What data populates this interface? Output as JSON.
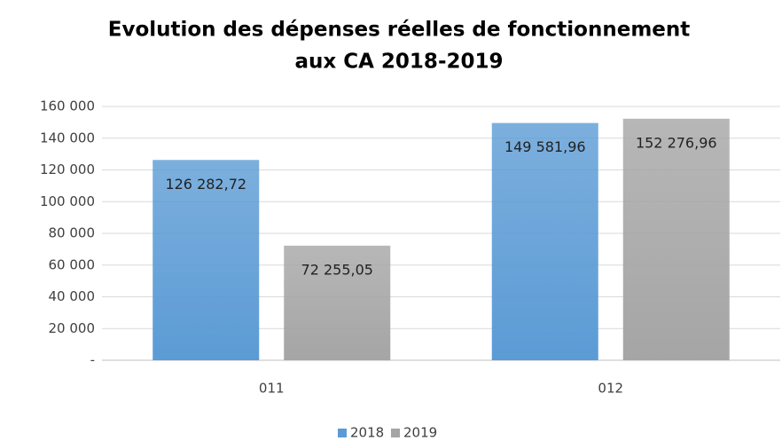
{
  "chart_data": {
    "type": "bar",
    "title": [
      "Evolution des dépenses réelles de fonctionnement",
      "aux CA 2018-2019"
    ],
    "categories": [
      "011",
      "012"
    ],
    "series": [
      {
        "name": "2018",
        "color": "#5b9bd5",
        "values": [
          126282.72,
          149581.96
        ],
        "value_labels": [
          "126 282,72",
          "149 581,96"
        ]
      },
      {
        "name": "2019",
        "color": "#a5a5a5",
        "values": [
          72255.05,
          152276.96
        ],
        "value_labels": [
          "72 255,05",
          "152 276,96"
        ]
      }
    ],
    "ylim": [
      0,
      160000
    ],
    "yticks": [
      {
        "value": 0,
        "label": "-"
      },
      {
        "value": 20000,
        "label": "20 000"
      },
      {
        "value": 40000,
        "label": "40 000"
      },
      {
        "value": 60000,
        "label": "60 000"
      },
      {
        "value": 80000,
        "label": "80 000"
      },
      {
        "value": 100000,
        "label": "100 000"
      },
      {
        "value": 120000,
        "label": "120 000"
      },
      {
        "value": 140000,
        "label": "140 000"
      },
      {
        "value": 160000,
        "label": "160 000"
      }
    ],
    "grid": true,
    "legend": "bottom"
  }
}
